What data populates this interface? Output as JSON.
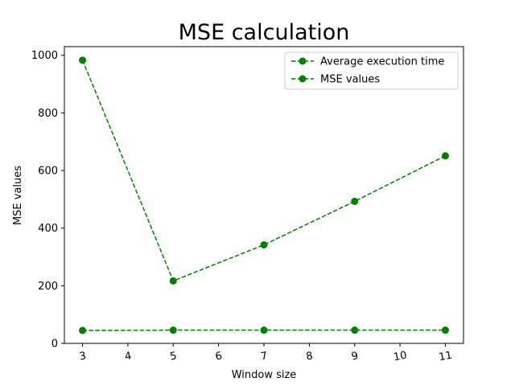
{
  "chart_data": {
    "type": "line",
    "title": "MSE calculation",
    "xlabel": "Window size",
    "ylabel": "MSE values",
    "x": [
      3,
      5,
      7,
      9,
      11
    ],
    "xlim": [
      2.6,
      11.4
    ],
    "ylim": [
      0,
      1030
    ],
    "xticks": [
      3,
      4,
      5,
      6,
      7,
      8,
      9,
      10,
      11
    ],
    "xtick_labels": [
      "3",
      "4",
      "5",
      "6",
      "7",
      "8",
      "9",
      "10",
      "11"
    ],
    "xtick_rotation_deg": -10,
    "yticks": [
      0,
      200,
      400,
      600,
      800,
      1000
    ],
    "ytick_labels": [
      "0",
      "200",
      "400",
      "600",
      "800",
      "1000"
    ],
    "grid": false,
    "legend_position": "top-right",
    "series": [
      {
        "name": "Average execution time",
        "values": [
          45,
          46,
          46,
          46,
          46
        ],
        "color": "#008000",
        "linestyle": "dashed",
        "marker": "circle"
      },
      {
        "name": "MSE values",
        "values": [
          983,
          217,
          342,
          493,
          651
        ],
        "color": "#008000",
        "linestyle": "dashed",
        "marker": "circle"
      }
    ]
  }
}
